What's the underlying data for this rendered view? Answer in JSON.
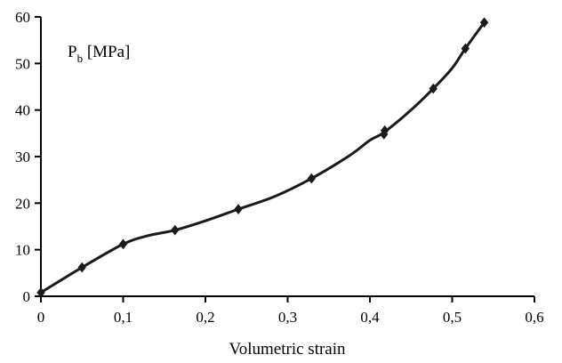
{
  "chart_data": {
    "type": "line",
    "title": "",
    "xlabel": "Volumetric strain",
    "ylabel": {
      "main": "P",
      "subscript": "b",
      "unit": " [MPa]"
    },
    "xlim": [
      0,
      0.6
    ],
    "ylim": [
      0,
      60
    ],
    "x_ticks": [
      "0",
      "0,1",
      "0,2",
      "0,3",
      "0,4",
      "0,5",
      "0,6"
    ],
    "y_ticks": [
      "0",
      "10",
      "20",
      "30",
      "40",
      "50",
      "60"
    ],
    "grid": false,
    "legend": "none",
    "series": [
      {
        "markers": [
          {
            "x": 0.0,
            "y": 0.8
          },
          {
            "x": 0.05,
            "y": 6.2
          },
          {
            "x": 0.1,
            "y": 11.2
          },
          {
            "x": 0.163,
            "y": 14.2
          },
          {
            "x": 0.24,
            "y": 18.7
          },
          {
            "x": 0.329,
            "y": 25.3
          },
          {
            "x": 0.417,
            "y": 34.8
          },
          {
            "x": 0.418,
            "y": 35.6
          },
          {
            "x": 0.477,
            "y": 44.6
          },
          {
            "x": 0.516,
            "y": 53.2
          },
          {
            "x": 0.539,
            "y": 58.8
          }
        ],
        "curve": [
          {
            "x": 0.0,
            "y": 0.8
          },
          {
            "x": 0.05,
            "y": 6.2
          },
          {
            "x": 0.1,
            "y": 11.2
          },
          {
            "x": 0.13,
            "y": 13.0
          },
          {
            "x": 0.163,
            "y": 14.2
          },
          {
            "x": 0.2,
            "y": 16.2
          },
          {
            "x": 0.24,
            "y": 18.7
          },
          {
            "x": 0.285,
            "y": 21.5
          },
          {
            "x": 0.329,
            "y": 25.3
          },
          {
            "x": 0.375,
            "y": 30.2
          },
          {
            "x": 0.4,
            "y": 33.5
          },
          {
            "x": 0.417,
            "y": 35.2
          },
          {
            "x": 0.45,
            "y": 40.0
          },
          {
            "x": 0.477,
            "y": 44.6
          },
          {
            "x": 0.5,
            "y": 49.0
          },
          {
            "x": 0.516,
            "y": 53.2
          },
          {
            "x": 0.539,
            "y": 58.8
          }
        ]
      }
    ]
  },
  "style": {
    "line_color": "#1a1a1a",
    "marker_color": "#1a1a1a",
    "axis_color": "#000000",
    "background": "#ffffff"
  }
}
